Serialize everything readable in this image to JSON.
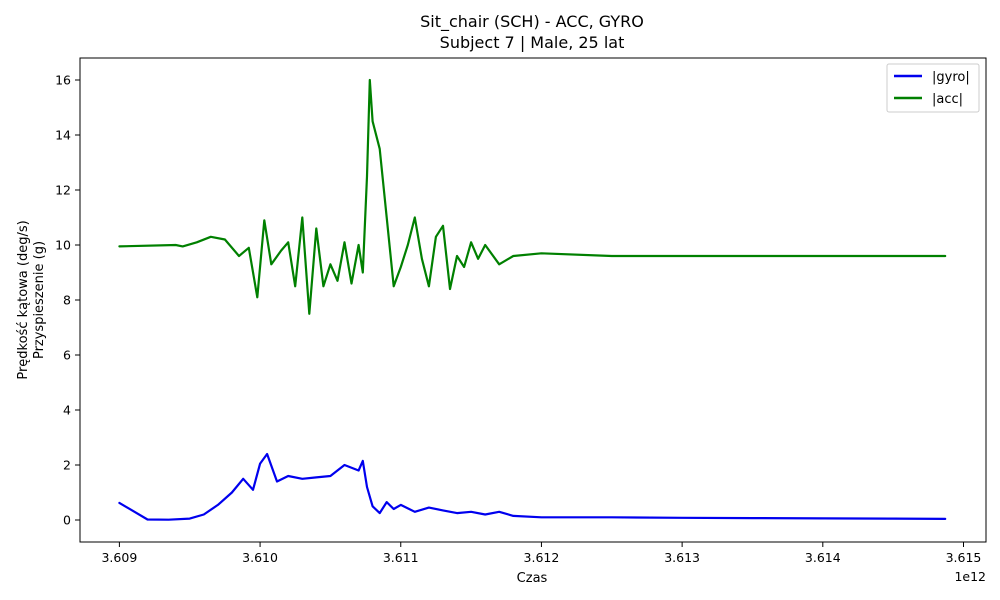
{
  "chart_data": {
    "type": "line",
    "title": "Sit_chair (SCH) - ACC, GYRO",
    "subtitle": "Subject 7 | Male, 25 lat",
    "xlabel": "Czas",
    "ylabel_lines": [
      "Prędkość kątowa (deg/s)",
      "Przyspieszenie (g)"
    ],
    "x_offset_label": "1e12",
    "xlim": [
      3.60872,
      3.61516
    ],
    "ylim": [
      -0.8,
      16.8
    ],
    "x_ticks": [
      3.609,
      3.61,
      3.611,
      3.612,
      3.613,
      3.614,
      3.615
    ],
    "x_tick_labels": [
      "3.609",
      "3.610",
      "3.611",
      "3.612",
      "3.613",
      "3.614",
      "3.615"
    ],
    "y_ticks": [
      0,
      2,
      4,
      6,
      8,
      10,
      12,
      14,
      16
    ],
    "y_tick_labels": [
      "0",
      "2",
      "4",
      "6",
      "8",
      "10",
      "12",
      "14",
      "16"
    ],
    "grid": false,
    "legend_position": "top-right",
    "series": [
      {
        "name": "|gyro|",
        "color": "#0000ee",
        "x": [
          3.609,
          3.6092,
          3.60935,
          3.6095,
          3.6096,
          3.6097,
          3.6098,
          3.60988,
          3.60995,
          3.61,
          3.61005,
          3.61012,
          3.6102,
          3.6103,
          3.6104,
          3.6105,
          3.6106,
          3.6107,
          3.61073,
          3.61076,
          3.6108,
          3.61085,
          3.6109,
          3.61095,
          3.611,
          3.6111,
          3.6112,
          3.6113,
          3.6114,
          3.6115,
          3.6116,
          3.6117,
          3.6118,
          3.612,
          3.6125,
          3.613,
          3.6135,
          3.614,
          3.6145,
          3.61487
        ],
        "values": [
          0.62,
          0.02,
          0.01,
          0.05,
          0.2,
          0.55,
          1.0,
          1.5,
          1.1,
          2.05,
          2.4,
          1.4,
          1.6,
          1.5,
          1.55,
          1.6,
          2.0,
          1.8,
          2.15,
          1.2,
          0.5,
          0.25,
          0.65,
          0.4,
          0.55,
          0.3,
          0.45,
          0.35,
          0.25,
          0.3,
          0.2,
          0.3,
          0.15,
          0.1,
          0.1,
          0.08,
          0.07,
          0.06,
          0.05,
          0.04
        ]
      },
      {
        "name": "|acc|",
        "color": "#008000",
        "x": [
          3.609,
          3.6094,
          3.60945,
          3.60955,
          3.60965,
          3.60975,
          3.60985,
          3.60992,
          3.60998,
          3.61003,
          3.61008,
          3.61015,
          3.6102,
          3.61025,
          3.6103,
          3.61035,
          3.6104,
          3.61045,
          3.6105,
          3.61055,
          3.6106,
          3.61065,
          3.6107,
          3.61073,
          3.61076,
          3.61078,
          3.6108,
          3.61085,
          3.6109,
          3.61095,
          3.611,
          3.61105,
          3.6111,
          3.61115,
          3.6112,
          3.61125,
          3.6113,
          3.61135,
          3.6114,
          3.61145,
          3.6115,
          3.61155,
          3.6116,
          3.6117,
          3.6118,
          3.612,
          3.6125,
          3.613,
          3.6135,
          3.614,
          3.6145,
          3.61487
        ],
        "values": [
          9.95,
          10.0,
          9.95,
          10.1,
          10.3,
          10.2,
          9.6,
          9.9,
          8.1,
          10.9,
          9.3,
          9.8,
          10.1,
          8.5,
          11.0,
          7.5,
          10.6,
          8.5,
          9.3,
          8.7,
          10.1,
          8.6,
          10.0,
          9.0,
          12.5,
          16.0,
          14.5,
          13.5,
          11.0,
          8.5,
          9.2,
          10.0,
          11.0,
          9.5,
          8.5,
          10.3,
          10.7,
          8.4,
          9.6,
          9.2,
          10.1,
          9.5,
          10.0,
          9.3,
          9.6,
          9.7,
          9.6,
          9.6,
          9.6,
          9.6,
          9.6,
          9.6
        ]
      }
    ]
  }
}
